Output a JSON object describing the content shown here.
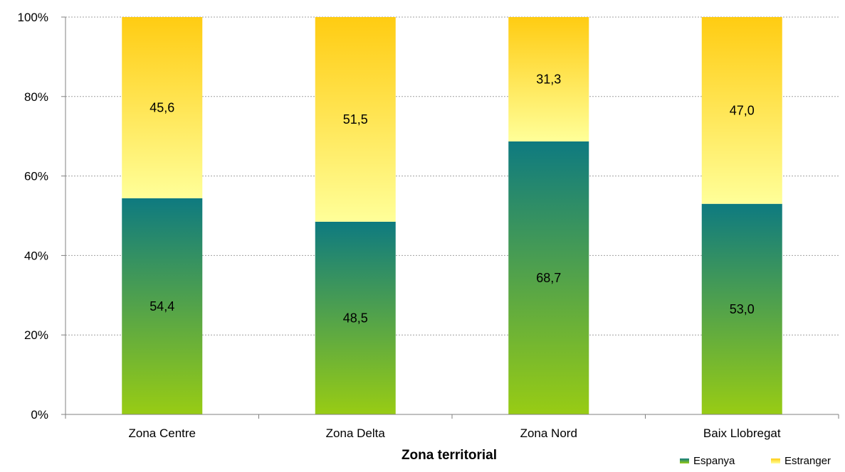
{
  "chart_data": {
    "type": "bar",
    "stacked": true,
    "percent": true,
    "categories": [
      "Zona Centre",
      "Zona Delta",
      "Zona Nord",
      "Baix Llobregat"
    ],
    "series": [
      {
        "name": "Espanya",
        "values": [
          54.4,
          48.5,
          68.7,
          53.0
        ],
        "labels": [
          "54,4",
          "48,5",
          "68,7",
          "53,0"
        ],
        "color_top": "#0e7a80",
        "color_bottom": "#98cc14"
      },
      {
        "name": "Estranger",
        "values": [
          45.6,
          51.5,
          31.3,
          47.0
        ],
        "labels": [
          "45,6",
          "51,5",
          "31,3",
          "47,0"
        ],
        "color_top": "#ffcc12",
        "color_bottom": "#ffff99"
      }
    ],
    "xlabel": "Zona territorial",
    "ylabel": "",
    "ylim": [
      0,
      100
    ],
    "yticks": [
      0,
      20,
      40,
      60,
      80,
      100
    ],
    "ytick_labels": [
      "0%",
      "20%",
      "40%",
      "60%",
      "80%",
      "100%"
    ],
    "grid": true,
    "legend_position": "bottom-right"
  }
}
